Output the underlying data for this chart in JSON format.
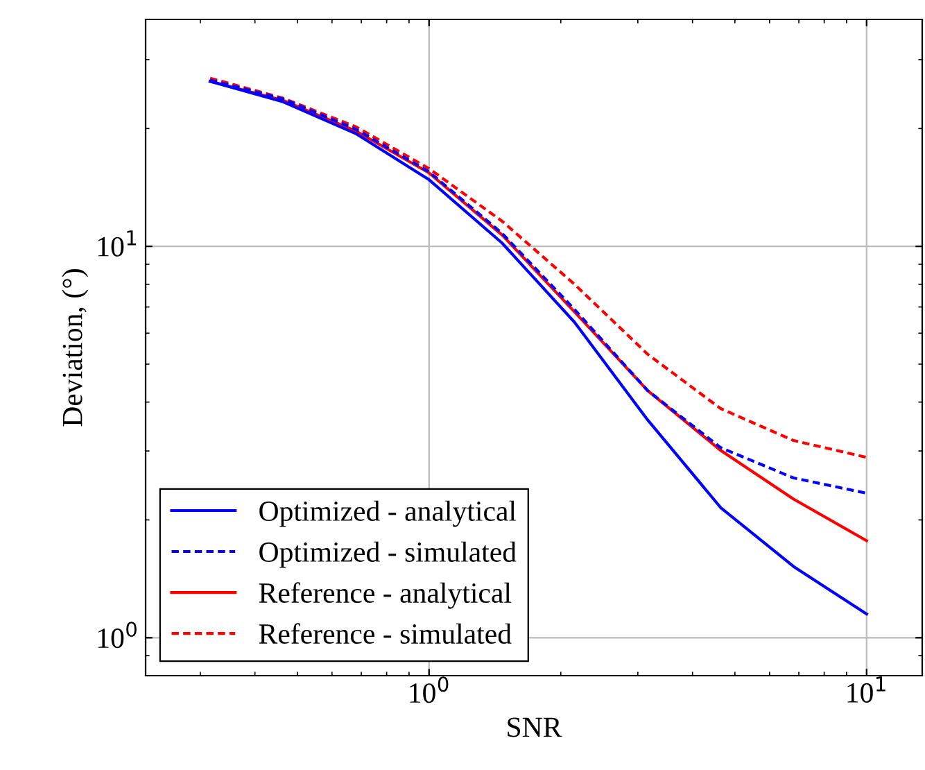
{
  "chart_data": {
    "type": "line",
    "xlabel": "SNR",
    "ylabel": "Deviation, (°)",
    "x": [
      0.316,
      0.464,
      0.681,
      1,
      1.468,
      2.15,
      3.16,
      4.64,
      6.81,
      10
    ],
    "series": [
      {
        "name": "Optimized - analytical",
        "color": "#0000ff",
        "line_style": "solid",
        "values": [
          26.4,
          23.4,
          19.4,
          14.8,
          10.2,
          6.4,
          3.6,
          2.15,
          1.52,
          1.15
        ]
      },
      {
        "name": "Optimized - simulated",
        "color": "#0000ff",
        "line_style": "dashed",
        "values": [
          26.6,
          23.8,
          19.9,
          15.5,
          10.8,
          6.9,
          4.28,
          3.06,
          2.56,
          2.34
        ]
      },
      {
        "name": "Reference - analytical",
        "color": "#ff0000",
        "line_style": "solid",
        "values": [
          26.4,
          23.6,
          19.7,
          15.4,
          10.7,
          6.8,
          4.28,
          3.01,
          2.26,
          1.77
        ]
      },
      {
        "name": "Reference - simulated",
        "color": "#ff0000",
        "line_style": "dashed",
        "values": [
          26.9,
          23.9,
          20.2,
          15.8,
          11.6,
          8.0,
          5.3,
          3.85,
          3.19,
          2.89
        ]
      }
    ],
    "log": "xy",
    "xlim": [
      0.225,
      13.4
    ],
    "ylim": [
      0.8,
      38
    ],
    "xticks": [
      {
        "value": 1,
        "label": "10$^{0}$"
      },
      {
        "value": 10,
        "label": "10$^{1}$"
      }
    ],
    "yticks": [
      {
        "value": 1,
        "label": "10$^{0}$"
      },
      {
        "value": 10,
        "label": "10$^{1}$"
      }
    ],
    "grid": true,
    "legend": "bottom left",
    "marker": "none"
  }
}
